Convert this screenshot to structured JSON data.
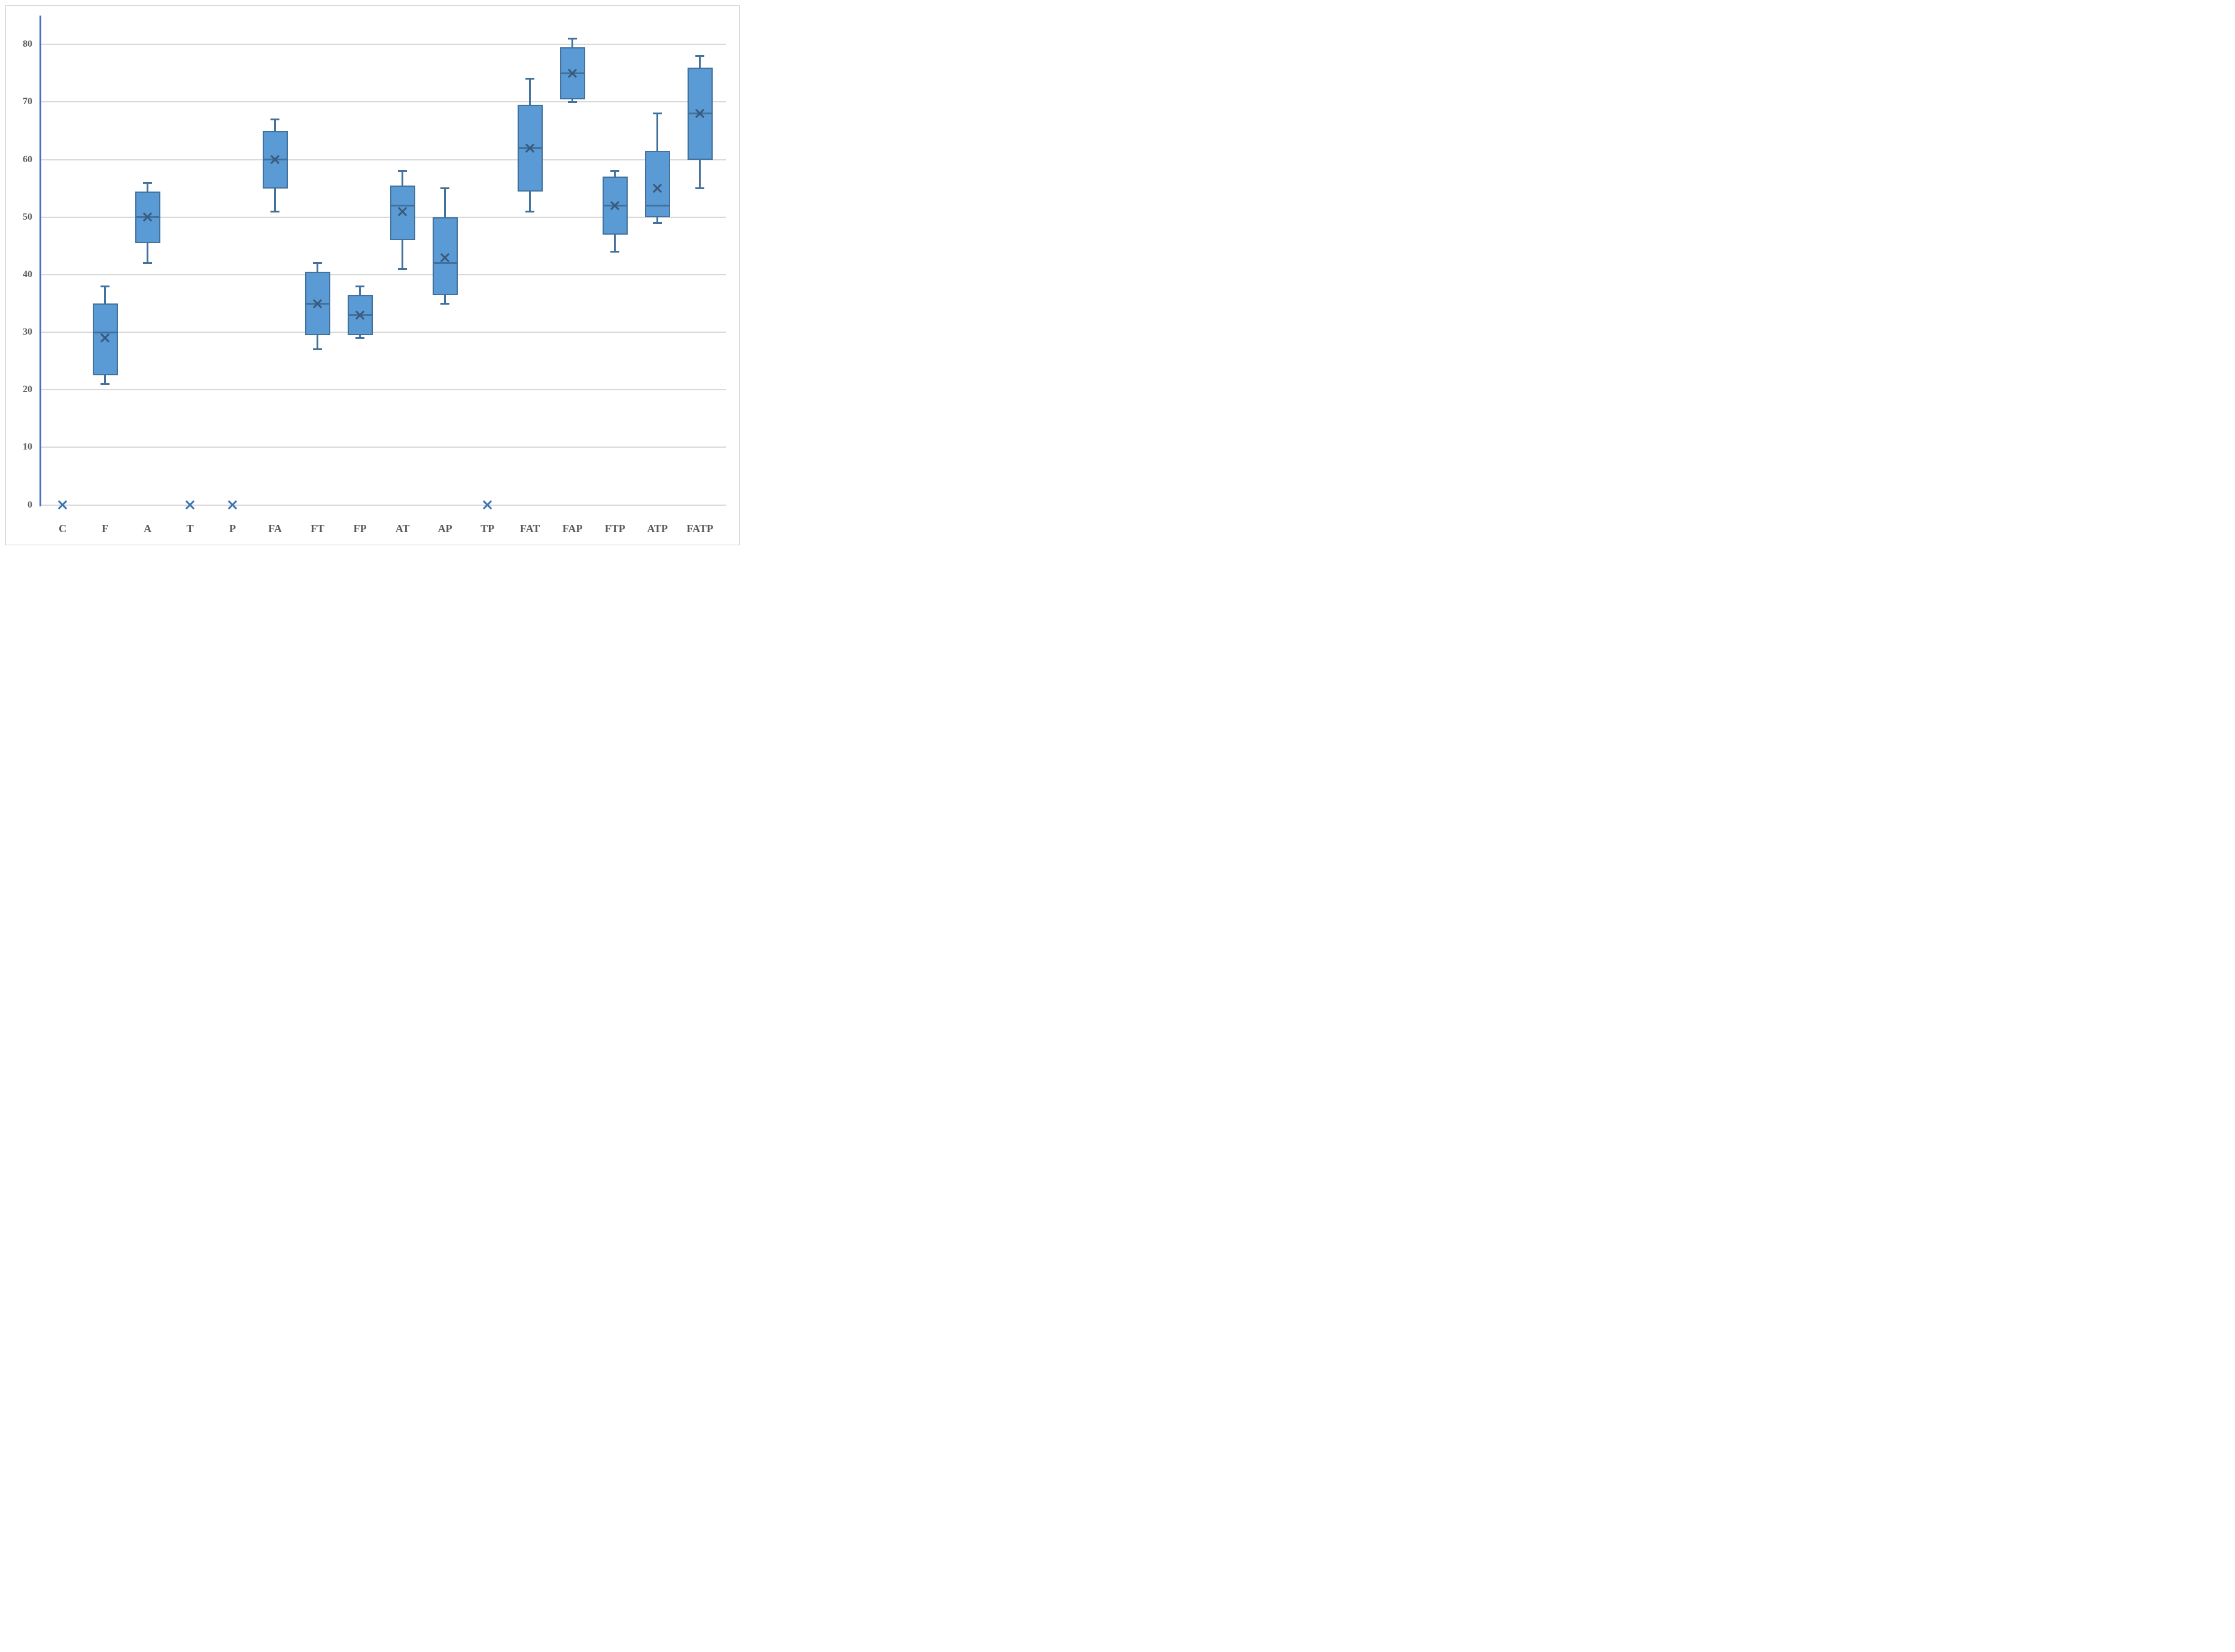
{
  "figure": {
    "background": "#ffffff",
    "border_color": "#c9c9c9"
  },
  "chart_data": {
    "type": "box",
    "title": "",
    "xlabel": "",
    "ylabel": "",
    "categories": [
      "C",
      "F",
      "A",
      "T",
      "P",
      "FA",
      "FT",
      "FP",
      "AT",
      "AP",
      "TP",
      "FAT",
      "FAP",
      "FTP",
      "ATP",
      "FATP"
    ],
    "boxes": [
      {
        "label": "C",
        "min": 0,
        "q1": 0,
        "median": 0,
        "mean": 0,
        "q3": 0,
        "max": 0
      },
      {
        "label": "F",
        "min": 21,
        "q1": 22.5,
        "median": 30,
        "mean": 29,
        "q3": 35,
        "max": 38
      },
      {
        "label": "A",
        "min": 42,
        "q1": 45.5,
        "median": 50,
        "mean": 50,
        "q3": 54.5,
        "max": 56
      },
      {
        "label": "T",
        "min": 0,
        "q1": 0,
        "median": 0,
        "mean": 0,
        "q3": 0,
        "max": 0
      },
      {
        "label": "P",
        "min": 0,
        "q1": 0,
        "median": 0,
        "mean": 0,
        "q3": 0,
        "max": 0
      },
      {
        "label": "FA",
        "min": 51,
        "q1": 55,
        "median": 60,
        "mean": 60,
        "q3": 65,
        "max": 67
      },
      {
        "label": "FT",
        "min": 27,
        "q1": 29.5,
        "median": 35,
        "mean": 35,
        "q3": 40.5,
        "max": 42
      },
      {
        "label": "FP",
        "min": 29,
        "q1": 29.5,
        "median": 33,
        "mean": 33,
        "q3": 36.5,
        "max": 38
      },
      {
        "label": "AT",
        "min": 41,
        "q1": 46,
        "median": 52,
        "mean": 51,
        "q3": 55.5,
        "max": 58
      },
      {
        "label": "AP",
        "min": 35,
        "q1": 36.5,
        "median": 42,
        "mean": 43,
        "q3": 50,
        "max": 55
      },
      {
        "label": "TP",
        "min": 0,
        "q1": 0,
        "median": 0,
        "mean": 0,
        "q3": 0,
        "max": 0
      },
      {
        "label": "FAT",
        "min": 51,
        "q1": 54.5,
        "median": 62,
        "mean": 62,
        "q3": 69.5,
        "max": 74
      },
      {
        "label": "FAP",
        "min": 70,
        "q1": 70.5,
        "median": 75,
        "mean": 75,
        "q3": 79.5,
        "max": 81
      },
      {
        "label": "FTP",
        "min": 44,
        "q1": 47,
        "median": 52,
        "mean": 52,
        "q3": 57,
        "max": 58
      },
      {
        "label": "ATP",
        "min": 49,
        "q1": 50,
        "median": 52,
        "mean": 55,
        "q3": 61.5,
        "max": 68
      },
      {
        "label": "FATP",
        "min": 55,
        "q1": 60,
        "median": 68,
        "mean": 68,
        "q3": 76,
        "max": 78
      }
    ],
    "y_ticks": [
      0,
      10,
      20,
      30,
      40,
      50,
      60,
      70,
      80
    ],
    "ylim": [
      0,
      85
    ],
    "grid": true,
    "legend": "none",
    "colors": {
      "box_fill": "#5B9BD5",
      "box_border": "#41719C",
      "whisker": "#41719C",
      "median": "#41719C",
      "mean_marker": "#3A5A7C",
      "zero_mean_marker": "#3C74B0",
      "y_axis_line": "#4472C4",
      "gridline": "#D9D9D9",
      "zero_line": "#D9D9D9",
      "tick_text": "#595959"
    }
  }
}
